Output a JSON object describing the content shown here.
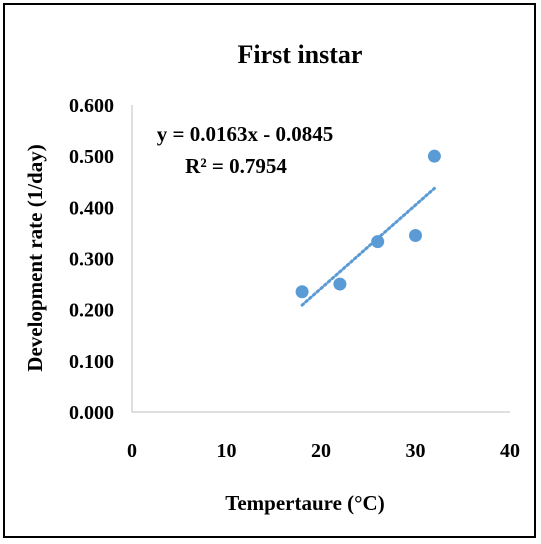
{
  "chart_data": {
    "type": "scatter",
    "title": "First instar",
    "xlabel": "Tempertaure (°C)",
    "ylabel": "Development rate (1/day)",
    "xlim": [
      0,
      40
    ],
    "ylim": [
      0,
      0.6
    ],
    "x_ticks": [
      "0",
      "10",
      "20",
      "30",
      "40"
    ],
    "y_ticks": [
      "0.000",
      "0.100",
      "0.200",
      "0.300",
      "0.400",
      "0.500",
      "0.600"
    ],
    "x": [
      18,
      22,
      26,
      30,
      32
    ],
    "y": [
      0.235,
      0.25,
      0.333,
      0.345,
      0.5
    ],
    "trendline": {
      "type": "linear",
      "slope": 0.0163,
      "intercept": -0.0845,
      "x_range": [
        18,
        32
      ],
      "style": "dotted",
      "equation": "y = 0.0163x - 0.0845",
      "r_squared": "R² = 0.7954"
    },
    "grid": false,
    "marker_color": "#5b9bd5",
    "trend_color": "#5b9bd5"
  }
}
